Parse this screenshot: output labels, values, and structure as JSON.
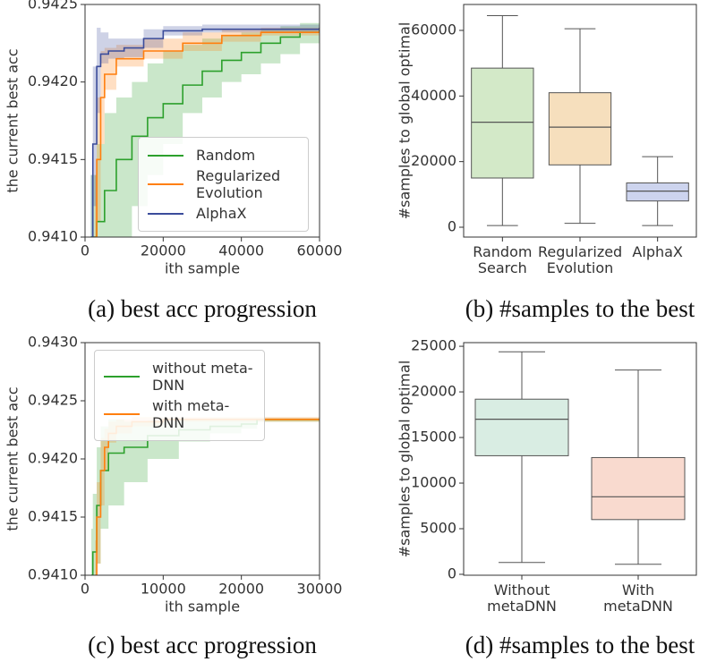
{
  "chart_data": [
    {
      "type": "line",
      "xlabel": "ith sample",
      "ylabel": "the current best acc",
      "caption": "(a) best acc progression",
      "xlim": [
        0,
        60000
      ],
      "xticks": [
        0,
        20000,
        40000,
        60000
      ],
      "ylim": [
        0.941,
        0.9425
      ],
      "yticks": [
        {
          "value": 0.941,
          "label": "0.9410"
        },
        0.9415,
        {
          "value": 0.942,
          "label": "0.9420"
        },
        0.9425
      ],
      "legend": "lower right",
      "series": [
        {
          "name": "Random",
          "color": "#2ca02c",
          "x": [
            1500,
            3000,
            5000,
            8000,
            12000,
            16000,
            20000,
            25000,
            30000,
            35000,
            40000,
            45000,
            50000,
            55000,
            60000
          ],
          "values": [
            0.941,
            0.9411,
            0.9413,
            0.9415,
            0.94165,
            0.94177,
            0.94186,
            0.94198,
            0.94207,
            0.94214,
            0.94219,
            0.94225,
            0.94229,
            0.94232,
            0.94234
          ],
          "lower": [
            0.9405,
            0.9406,
            0.9408,
            0.941,
            0.9412,
            0.9414,
            0.9416,
            0.9418,
            0.9419,
            0.942,
            0.94205,
            0.94212,
            0.94218,
            0.94225,
            0.9423
          ],
          "upper": [
            0.9414,
            0.9416,
            0.9418,
            0.9419,
            0.942,
            0.94212,
            0.9422,
            0.94224,
            0.94228,
            0.9423,
            0.94232,
            0.94234,
            0.94236,
            0.94238,
            0.94238
          ]
        },
        {
          "name": "Regularized Evolution",
          "color": "#ff7f0e",
          "x": [
            2500,
            3000,
            4000,
            5000,
            8000,
            15000,
            25000,
            35000,
            45000,
            60000
          ],
          "values": [
            0.941,
            0.9415,
            0.9419,
            0.94205,
            0.94215,
            0.9422,
            0.94225,
            0.9423,
            0.94232,
            0.94234
          ],
          "lower": [
            0.9407,
            0.9411,
            0.9416,
            0.94195,
            0.9421,
            0.94215,
            0.9422,
            0.94226,
            0.9423,
            0.94232
          ],
          "upper": [
            0.9414,
            0.9419,
            0.9422,
            0.94222,
            0.94224,
            0.94228,
            0.94232,
            0.94234,
            0.94235,
            0.94236
          ]
        },
        {
          "name": "AlphaX",
          "color": "#3b4c9b",
          "x": [
            1500,
            2000,
            3000,
            4000,
            6000,
            10000,
            15000,
            20000,
            30000,
            60000
          ],
          "values": [
            0.941,
            0.9416,
            0.9421,
            0.94218,
            0.9422,
            0.94222,
            0.94228,
            0.94233,
            0.94234,
            0.94235
          ],
          "lower": [
            0.9407,
            0.9412,
            0.9418,
            0.94212,
            0.94215,
            0.94216,
            0.94222,
            0.9423,
            0.94232,
            0.94233
          ],
          "upper": [
            0.9414,
            0.9421,
            0.94235,
            0.94232,
            0.94228,
            0.94228,
            0.94234,
            0.94236,
            0.94237,
            0.94237
          ]
        }
      ]
    },
    {
      "type": "box",
      "ylabel": "#samples to global optimal",
      "caption": "(b) #samples to the best",
      "ylim": [
        -3000,
        67900
      ],
      "yticks": [
        0,
        20000,
        40000,
        60000
      ],
      "categories": [
        "Random Search",
        "Regularized Evolution",
        "AlphaX"
      ],
      "boxes": [
        {
          "color": "#d3e9c8",
          "min": 500,
          "q1": 15000,
          "median": 32000,
          "q3": 48500,
          "max": 64500
        },
        {
          "color": "#f6dfbd",
          "min": 1200,
          "q1": 19000,
          "median": 30500,
          "q3": 41000,
          "max": 60500
        },
        {
          "color": "#cdd4ee",
          "min": 500,
          "q1": 8000,
          "median": 11000,
          "q3": 13500,
          "max": 21500
        }
      ]
    },
    {
      "type": "line",
      "xlabel": "ith sample",
      "ylabel": "the current best acc",
      "caption": "(c) best acc progression",
      "xlim": [
        0,
        30000
      ],
      "xticks": [
        0,
        10000,
        20000,
        30000
      ],
      "ylim": [
        0.941,
        0.943
      ],
      "yticks": [
        {
          "value": 0.941,
          "label": "0.9410"
        },
        0.9415,
        {
          "value": 0.942,
          "label": "0.9420"
        },
        0.9425,
        {
          "value": 0.943,
          "label": "0.9430"
        }
      ],
      "legend": "upper left",
      "series": [
        {
          "name": "without meta-DNN",
          "color": "#2ca02c",
          "x": [
            800,
            1000,
            1500,
            2000,
            3000,
            5000,
            8000,
            12000,
            16000,
            20000,
            22000,
            30000
          ],
          "values": [
            0.941,
            0.9412,
            0.9416,
            0.9419,
            0.94205,
            0.9421,
            0.9422,
            0.94225,
            0.94228,
            0.9423,
            0.94234,
            0.94234
          ],
          "lower": [
            0.9406,
            0.9408,
            0.9411,
            0.9414,
            0.9416,
            0.9418,
            0.942,
            0.94215,
            0.94222,
            0.94226,
            0.94232,
            0.94233
          ],
          "upper": [
            0.9414,
            0.9417,
            0.9421,
            0.94228,
            0.94234,
            0.94232,
            0.94233,
            0.94234,
            0.94235,
            0.94235,
            0.94235,
            0.94235
          ]
        },
        {
          "name": "with meta-DNN",
          "color": "#ff7f0e",
          "x": [
            1300,
            1500,
            2000,
            2500,
            3000,
            4000,
            6000,
            10000,
            30000
          ],
          "values": [
            0.941,
            0.9415,
            0.9419,
            0.9421,
            0.94222,
            0.94228,
            0.94232,
            0.94234,
            0.94234
          ],
          "lower": [
            0.9407,
            0.9411,
            0.9416,
            0.9419,
            0.94214,
            0.94222,
            0.94228,
            0.94232,
            0.94233
          ],
          "upper": [
            0.9413,
            0.9418,
            0.94218,
            0.94226,
            0.94232,
            0.94234,
            0.94236,
            0.94236,
            0.94236
          ]
        }
      ]
    },
    {
      "type": "box",
      "ylabel": "#samples to global optimal",
      "caption": "(d) #samples to the best",
      "ylim": [
        -100,
        25400
      ],
      "yticks": [
        0,
        5000,
        10000,
        15000,
        20000,
        25000
      ],
      "categories": [
        "Without metaDNN",
        "With metaDNN"
      ],
      "boxes": [
        {
          "color": "#d9ede3",
          "min": 1300,
          "q1": 13000,
          "median": 17000,
          "q3": 19200,
          "max": 24400
        },
        {
          "color": "#f9dacf",
          "min": 1100,
          "q1": 6000,
          "median": 8500,
          "q3": 12800,
          "max": 22400
        }
      ]
    }
  ]
}
